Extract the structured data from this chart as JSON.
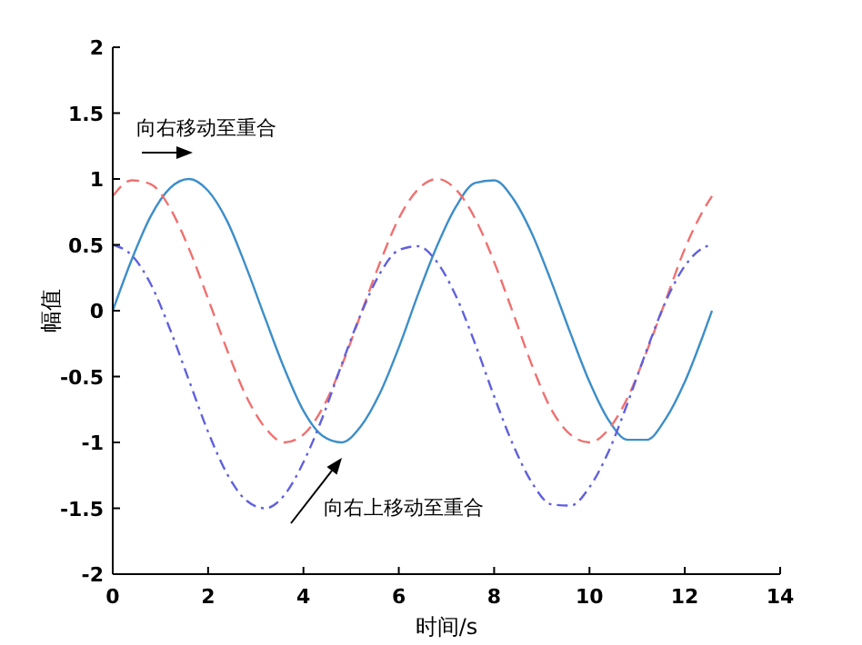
{
  "chart_data": {
    "type": "line",
    "xlabel": "时间/s",
    "ylabel": "幅值",
    "x": [
      0,
      0.4,
      0.8,
      1.2,
      1.6,
      2.0,
      2.4,
      2.8,
      3.2,
      3.6,
      4.0,
      4.4,
      4.8,
      5.2,
      5.6,
      6.0,
      6.4,
      6.8,
      7.2,
      7.6,
      8.0,
      8.4,
      8.8,
      9.2,
      9.6,
      10.0,
      10.4,
      10.8,
      11.2,
      11.6,
      12.0,
      12.4,
      12.57
    ],
    "series": [
      {
        "color": "#3d8ec9",
        "line_style": "solid",
        "values": [
          0,
          0.39,
          0.72,
          0.93,
          1.0,
          0.91,
          0.68,
          0.33,
          -0.06,
          -0.44,
          -0.76,
          -0.95,
          -1.0,
          -0.88,
          -0.63,
          -0.28,
          0.12,
          0.49,
          0.79,
          0.97,
          0.99,
          0.85,
          0.58,
          0.22,
          -0.17,
          -0.54,
          -0.83,
          -0.98,
          -0.98,
          -0.82,
          -0.54,
          -0.17,
          0
        ]
      },
      {
        "color": "#f07070",
        "line_style": "dashed",
        "values": [
          0.87,
          0.99,
          0.96,
          0.78,
          0.47,
          0.09,
          -0.3,
          -0.65,
          -0.89,
          -1.0,
          -0.94,
          -0.74,
          -0.42,
          -0.03,
          0.36,
          0.7,
          0.92,
          1.0,
          0.92,
          0.7,
          0.37,
          -0.02,
          -0.42,
          -0.75,
          -0.94,
          -1.0,
          -0.9,
          -0.66,
          -0.31,
          0.08,
          0.47,
          0.77,
          0.87
        ]
      },
      {
        "color": "#6060e0",
        "line_style": "dashdot",
        "values": [
          0.5,
          0.42,
          0.2,
          -0.14,
          -0.53,
          -0.92,
          -1.24,
          -1.44,
          -1.5,
          -1.4,
          -1.15,
          -0.81,
          -0.41,
          -0.03,
          0.28,
          0.46,
          0.49,
          0.37,
          0.11,
          -0.25,
          -0.65,
          -1.02,
          -1.31,
          -1.47,
          -1.48,
          -1.34,
          -1.07,
          -0.7,
          -0.3,
          0.07,
          0.34,
          0.48,
          0.5
        ]
      }
    ],
    "annotations": [
      "向右移动至重合",
      "向右上移动至重合"
    ],
    "xlim": [
      0,
      14
    ],
    "xticks": [
      0,
      2,
      4,
      6,
      8,
      10,
      12,
      14
    ],
    "ylim": [
      -2,
      2
    ],
    "yticks": [
      -2,
      -1.5,
      -1,
      -0.5,
      0,
      0.5,
      1,
      1.5,
      2
    ],
    "grid": false,
    "marker": "none"
  }
}
